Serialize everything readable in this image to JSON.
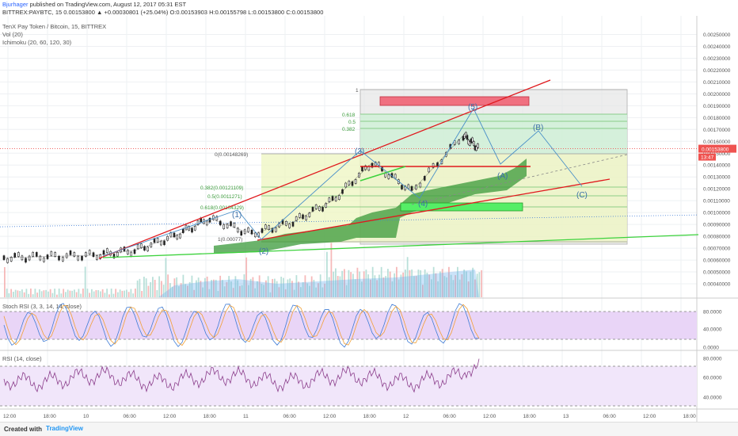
{
  "header": {
    "author": "Bjurhager",
    "published": "published on TradingView.com, August 12, 2017 05:31 EST",
    "ohlc_line": "BITTREX:PAYBTC, 15  0.00153800 ▲ +0.00030801 (+25.04%)  O:0.00153903  H:0.00155798  L:0.00153800  C:0.00153800"
  },
  "legend": {
    "symbol": "TenX Pay Token / Bitcoin, 15, BITTREX",
    "volume": "Vol (20)",
    "ichimoku": "Ichimoku (20, 60, 120, 30)"
  },
  "price_axis": {
    "ticks": [
      "0.00250000",
      "0.00240000",
      "0.00230000",
      "0.00220000",
      "0.00210000",
      "0.00200000",
      "0.00190000",
      "0.00180000",
      "0.00170000",
      "0.00160000",
      "0.00150000",
      "0.00140000",
      "0.00130000",
      "0.00120000",
      "0.00110000",
      "0.00100000",
      "0.00090000",
      "0.00080000",
      "0.00070000",
      "0.00060000",
      "0.00050000",
      "0.00040000"
    ],
    "last_price": "0.00153800",
    "countdown": "13:47"
  },
  "fib_labels": {
    "one": "1",
    "f618_top": "0.618",
    "f5_top": "0.5",
    "f382_top": "0.382",
    "zero": "0(0.00148269)",
    "f382": "0.382(0.00121109)",
    "f5": "0.5(0.0011271)",
    "f618": "0.618(0.00104329)",
    "low": "1(0.00077)"
  },
  "wave_labels": [
    "(1)",
    "(2)",
    "(3)",
    "(4)",
    "(5)",
    "(A)",
    "(B)",
    "(C)"
  ],
  "stoch": {
    "title": "Stoch RSI (3, 3, 14, 14, close)",
    "ticks": [
      "80.0000",
      "40.0000",
      "0.0000"
    ]
  },
  "rsi": {
    "title": "RSI (14, close)",
    "ticks": [
      "80.0000",
      "60.0000",
      "40.0000"
    ]
  },
  "time_axis": [
    "12:00",
    "18:00",
    "10",
    "06:00",
    "12:00",
    "18:00",
    "11",
    "06:00",
    "12:00",
    "18:00",
    "12",
    "06:00",
    "12:00",
    "18:00",
    "13",
    "06:00",
    "12:00",
    "18:00"
  ],
  "footer": {
    "created": "Created with",
    "brand": "TradingView"
  },
  "colors": {
    "up": "#26a69a",
    "down": "#ef5350",
    "trend_red": "#e0191d",
    "trend_green": "#3cd23c",
    "wave_blue": "#4a90c8",
    "cloud": "#3a9a3a",
    "stoch_bg": "#e9d5f7",
    "rsi_bg": "#f1e6fa",
    "rsi_line": "#8a3c8a",
    "stoch_k": "#3f7cd6",
    "stoch_d": "#f2a035"
  },
  "chart_data": {
    "type": "line",
    "title": "TenX Pay Token / Bitcoin, 15, BITTREX",
    "xlabel": "",
    "ylabel": "",
    "x": [
      "Aug 9 12:00",
      "Aug 9 18:00",
      "Aug 10 00:00",
      "Aug 10 06:00",
      "Aug 10 12:00",
      "Aug 10 18:00",
      "Aug 11 00:00",
      "Aug 11 06:00",
      "Aug 11 12:00",
      "Aug 11 18:00",
      "Aug 12 00:00",
      "Aug 12 06:00",
      "Aug 12 09:00"
    ],
    "series": [
      {
        "values": [
          0.00062,
          0.00063,
          0.00064,
          0.00068,
          0.0008,
          0.00095,
          0.00082,
          0.00092,
          0.0011,
          0.00142,
          0.00118,
          0.00165,
          0.00154
        ]
      }
    ],
    "ylim": [
      0.0004,
      0.00255
    ],
    "grid": true
  }
}
